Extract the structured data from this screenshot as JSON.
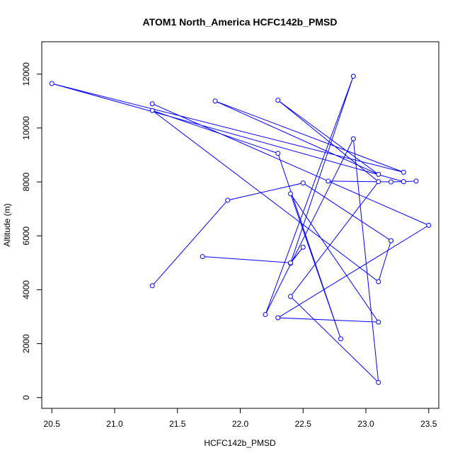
{
  "chart_data": {
    "type": "line",
    "title": "ATOM1 North_America HCFC142b_PMSD",
    "xlabel": "HCFC142b_PMSD",
    "ylabel": "Altitude (m)",
    "xlim": [
      20.42,
      23.58
    ],
    "ylim": [
      -400,
      13200
    ],
    "xticks": [
      20.5,
      21.0,
      21.5,
      22.0,
      22.5,
      23.0,
      23.5
    ],
    "xtick_labels": [
      "20.5",
      "21.0",
      "21.5",
      "22.0",
      "22.5",
      "23.0",
      "23.5"
    ],
    "yticks": [
      0,
      2000,
      4000,
      6000,
      8000,
      10000,
      12000
    ],
    "ytick_labels": [
      "0",
      "2000",
      "4000",
      "6000",
      "8000",
      "10000",
      "12000"
    ],
    "grid": false,
    "color": "#0000ff",
    "series": [
      {
        "x": [
          21.3,
          21.9,
          22.5,
          23.2,
          23.1,
          21.3,
          22.3,
          22.8,
          22.4,
          23.1,
          22.3,
          23.5,
          21.3,
          22.7,
          23.2,
          23.3,
          23.4,
          23.3,
          20.5,
          23.3,
          21.8,
          23.1,
          22.3,
          23.1,
          22.4,
          23.1,
          22.9,
          22.2,
          22.9,
          22.4,
          22.5,
          22.4,
          21.7
        ],
        "y": [
          4150,
          7320,
          7960,
          5820,
          4300,
          10650,
          9060,
          2180,
          7560,
          2800,
          2960,
          6390,
          10900,
          8030,
          8000,
          8010,
          8030,
          8010,
          11650,
          8360,
          11000,
          8280,
          11030,
          8010,
          3750,
          560,
          9600,
          3080,
          11920,
          4980,
          5580,
          5000,
          5230
        ]
      }
    ]
  }
}
